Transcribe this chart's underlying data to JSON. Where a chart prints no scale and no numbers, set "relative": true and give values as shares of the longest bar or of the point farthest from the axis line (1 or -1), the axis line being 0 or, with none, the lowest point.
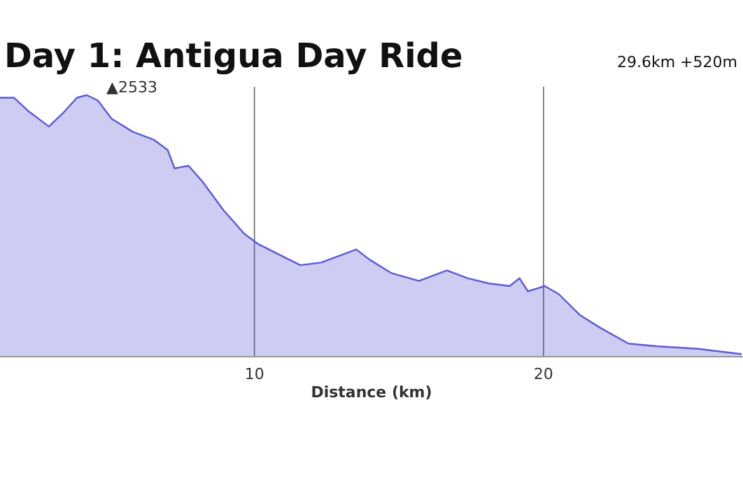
{
  "chart_data": {
    "type": "area",
    "title": "Day 1: Antigua Day Ride",
    "subtitle": "29.6km +520m",
    "xlabel": "Distance (km)",
    "relative": true,
    "grid": "x",
    "xlim": [
      1.2,
      26.9
    ],
    "xticks": [
      10,
      20
    ],
    "annotations": [
      {
        "text": "▲2533",
        "x": 4.2,
        "y": 1
      }
    ],
    "series": [
      {
        "color": "#5b5bd6",
        "x": [
          1.2,
          1.68,
          2.17,
          2.89,
          3.37,
          3.86,
          4.2,
          4.58,
          5.06,
          5.79,
          6.51,
          7.0,
          7.24,
          7.72,
          8.2,
          8.93,
          9.65,
          10.14,
          10.86,
          11.59,
          12.31,
          13.04,
          13.52,
          14.0,
          14.73,
          15.69,
          16.66,
          17.38,
          18.11,
          18.83,
          19.17,
          19.46,
          20.04,
          20.52,
          21.25,
          21.97,
          22.94,
          23.9,
          25.35,
          26.85
        ],
        "values": [
          0.99,
          0.99,
          0.94,
          0.88,
          0.93,
          0.99,
          1,
          0.98,
          0.91,
          0.86,
          0.83,
          0.79,
          0.72,
          0.73,
          0.67,
          0.56,
          0.47,
          0.43,
          0.39,
          0.35,
          0.36,
          0.39,
          0.41,
          0.37,
          0.32,
          0.29,
          0.33,
          0.3,
          0.28,
          0.27,
          0.3,
          0.25,
          0.27,
          0.24,
          0.16,
          0.11,
          0.05,
          0.04,
          0.03,
          0.01
        ]
      }
    ]
  }
}
